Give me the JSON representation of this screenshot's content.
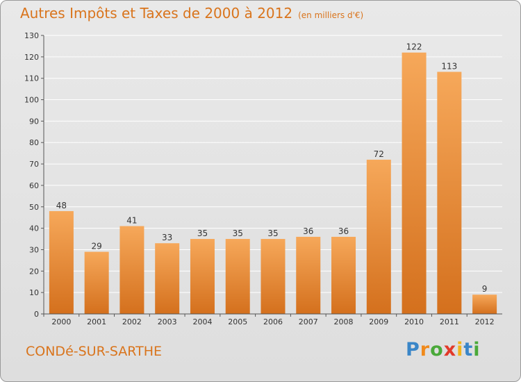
{
  "header": {
    "title": "Autres Impôts et Taxes de 2000 à 2012",
    "subtitle": "(en milliers d'€)"
  },
  "footer": {
    "commune": "CONDé-SUR-SARTHE",
    "logo_letters": [
      "P",
      "r",
      "o",
      "x",
      "i",
      "t",
      "i"
    ],
    "logo_colors": [
      "#3a86c8",
      "#f08a1c",
      "#4aa93a",
      "#e23a2a",
      "#f2b51b",
      "#3a86c8",
      "#4aa93a"
    ]
  },
  "chart_data": {
    "type": "bar",
    "title": "Autres Impôts et Taxes de 2000 à 2012",
    "subtitle": "(en milliers d'€)",
    "categories": [
      "2000",
      "2001",
      "2002",
      "2003",
      "2004",
      "2005",
      "2006",
      "2007",
      "2008",
      "2009",
      "2010",
      "2011",
      "2012"
    ],
    "values": [
      48,
      29,
      41,
      33,
      35,
      35,
      35,
      36,
      36,
      72,
      122,
      113,
      9
    ],
    "ylim": [
      0,
      130
    ],
    "yticks": [
      0,
      10,
      20,
      30,
      40,
      50,
      60,
      70,
      80,
      90,
      100,
      110,
      120,
      130
    ],
    "grid": true,
    "bar_color_light": "#f6a85a",
    "bar_color_dark": "#d4701d",
    "grid_color": "#ffffff"
  }
}
